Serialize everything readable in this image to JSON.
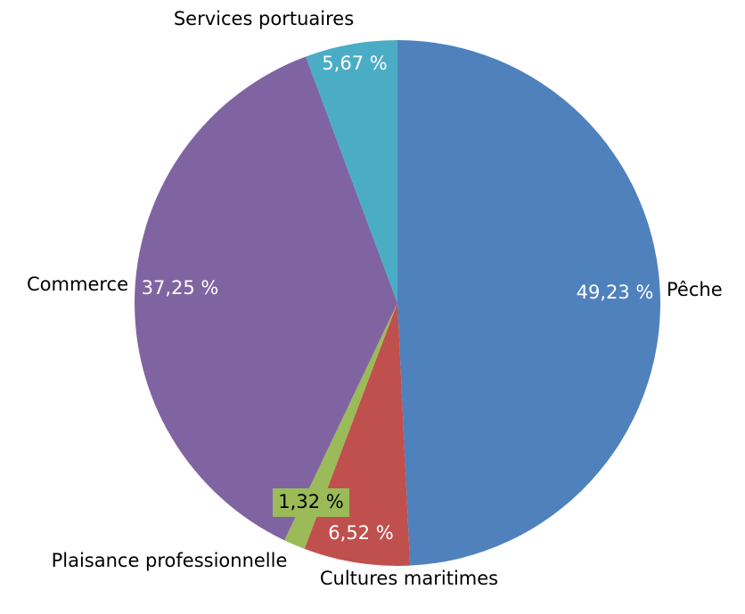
{
  "chart_data": {
    "type": "pie",
    "start_angle_deg": 0,
    "direction": "clockwise",
    "slices": [
      {
        "label": "Pêche",
        "value": 49.23,
        "value_label": "49,23 %",
        "color": "#4F81BD",
        "value_text_color": "#FFFFFF"
      },
      {
        "label": "Cultures maritimes",
        "value": 6.52,
        "value_label": "6,52 %",
        "color": "#C0504D",
        "value_text_color": "#FFFFFF"
      },
      {
        "label": "Plaisance professionnelle",
        "value": 1.32,
        "value_label": "1,32 %",
        "color": "#9BBB59",
        "value_text_color": "#000000"
      },
      {
        "label": "Commerce",
        "value": 37.25,
        "value_label": "37,25 %",
        "color": "#8064A2",
        "value_text_color": "#FFFFFF"
      },
      {
        "label": "Services portuaires",
        "value": 5.67,
        "value_label": "5,67 %",
        "color": "#4BACC6",
        "value_text_color": "#FFFFFF"
      }
    ]
  }
}
